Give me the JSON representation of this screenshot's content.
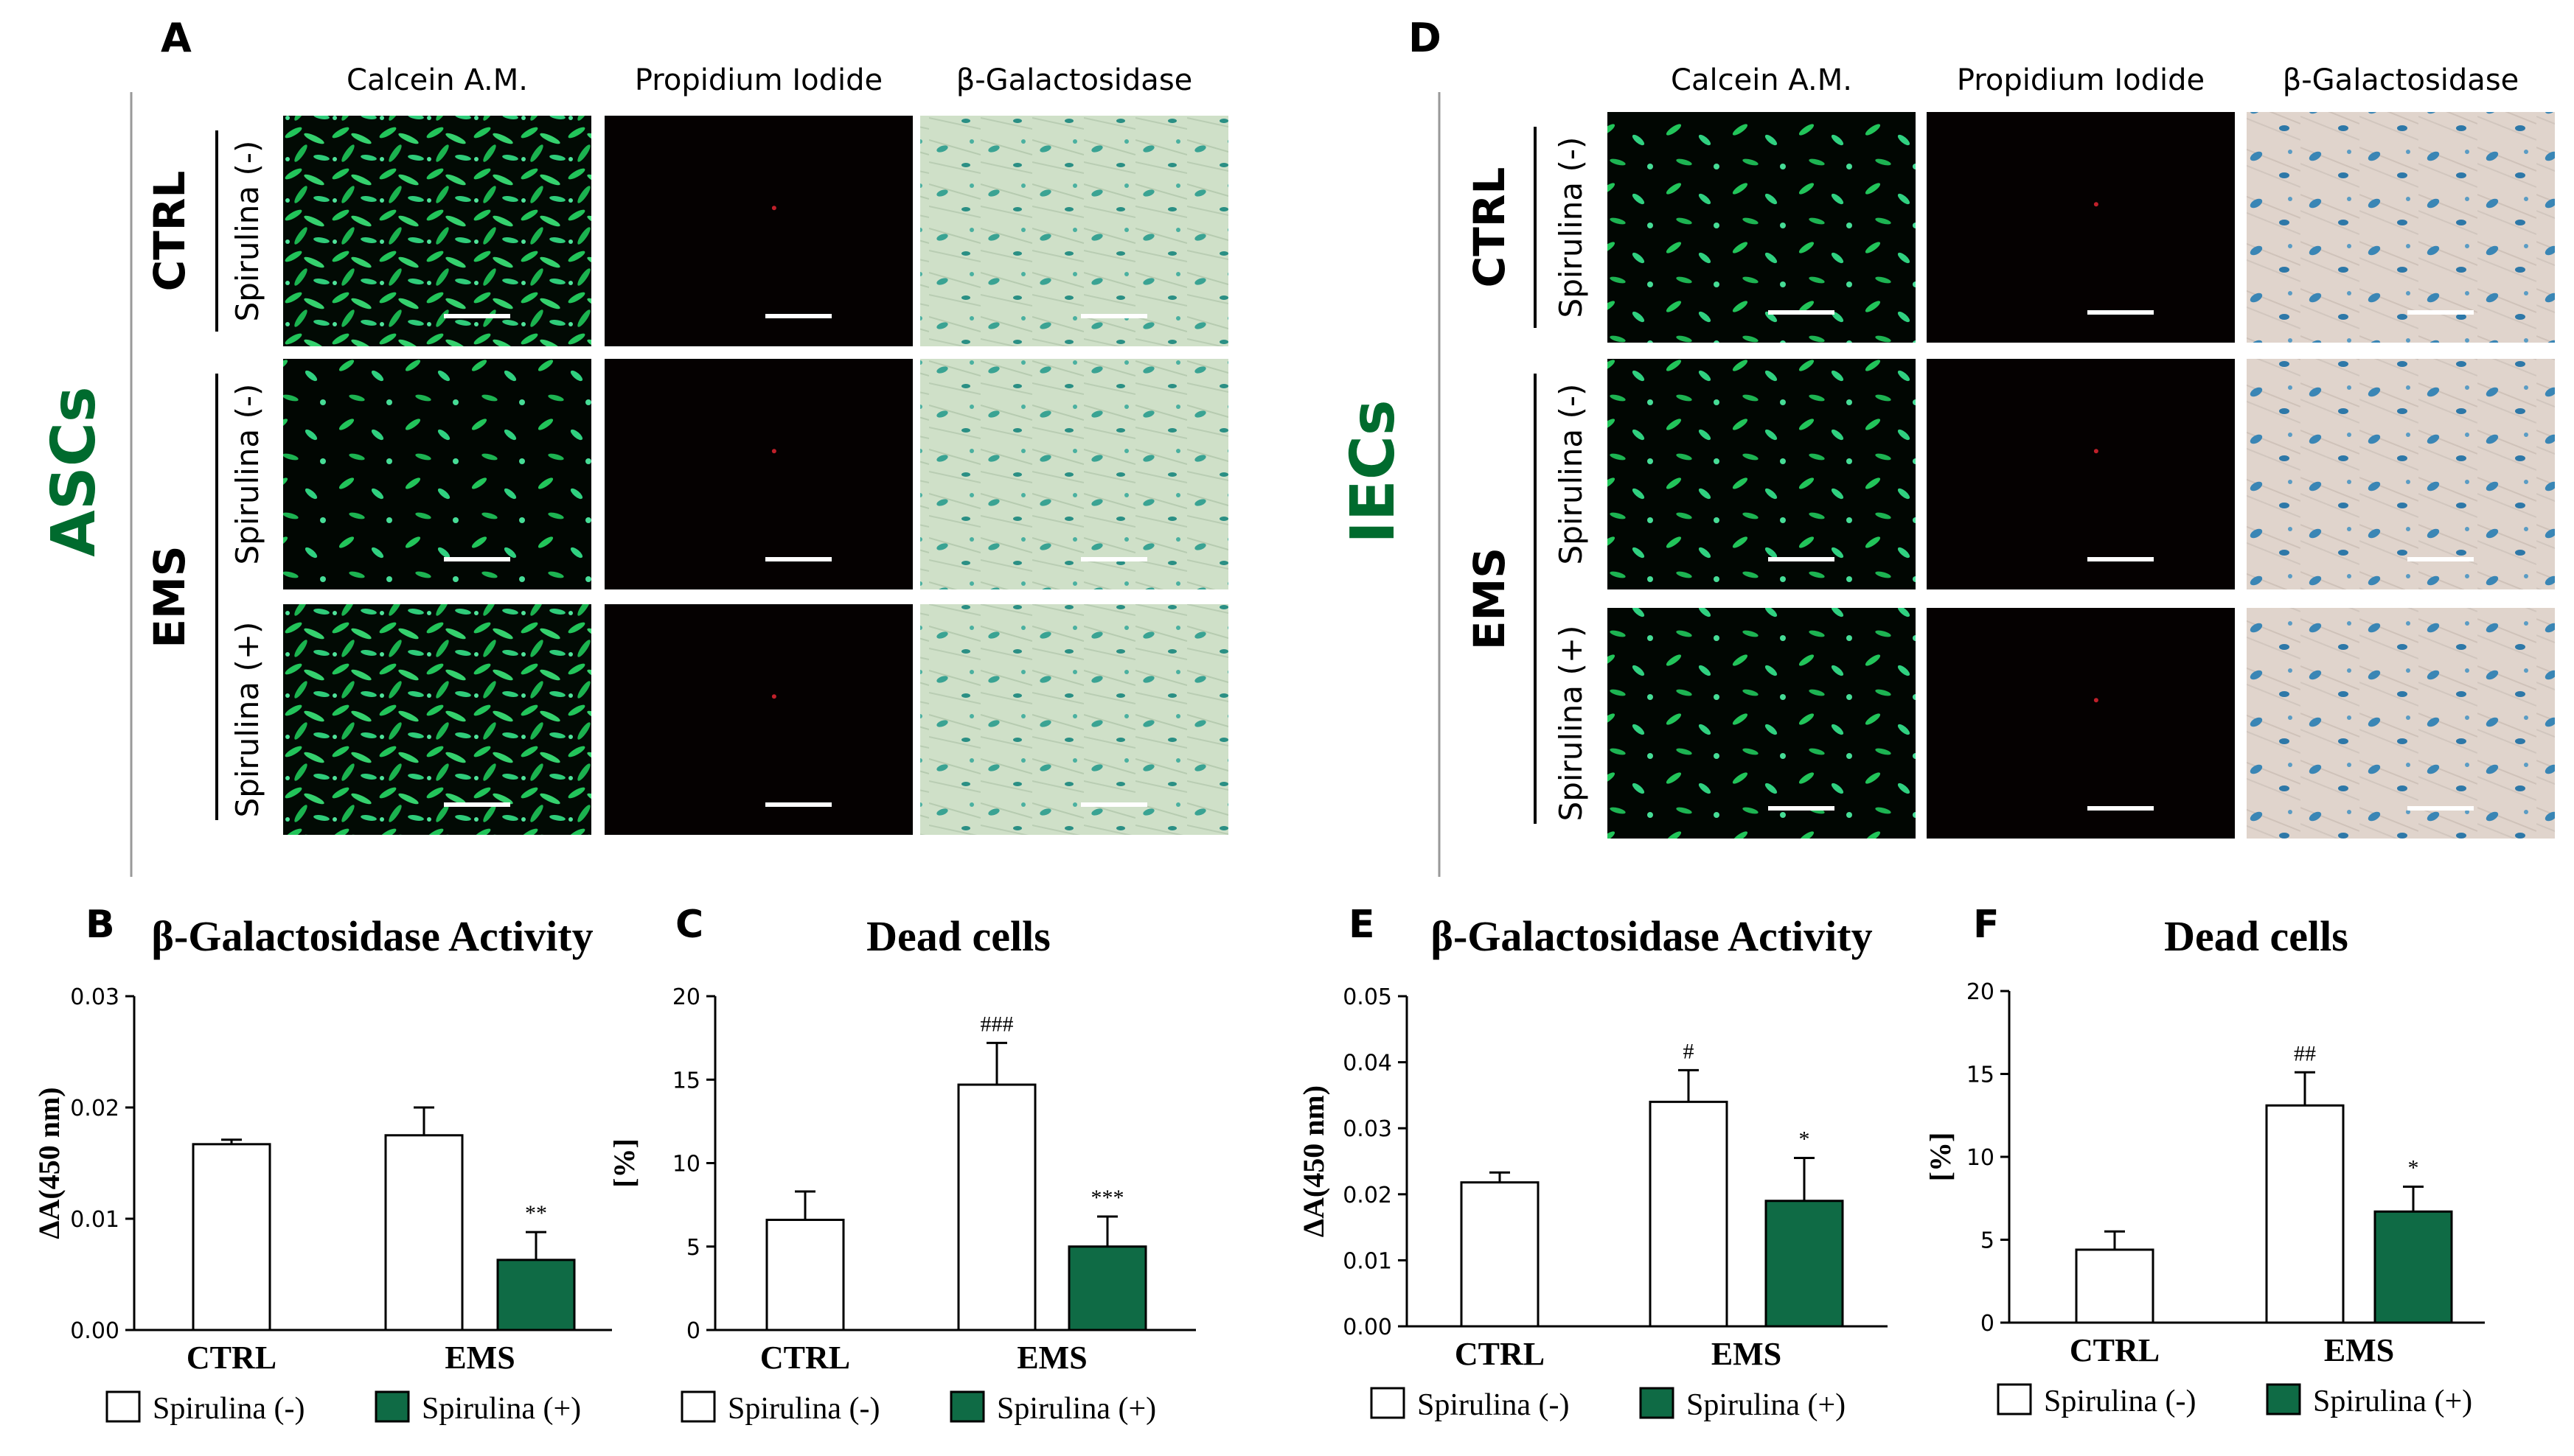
{
  "panels": {
    "A": {
      "letter": "A",
      "group_label": "ASCs",
      "col_headers": [
        "Calcein A.M.",
        "Propidium Iodide",
        "β-Galactosidase"
      ],
      "ctrl_label": "CTRL",
      "ems_label": "EMS",
      "row_labels": [
        "Spirulina (-)",
        "Spirulina (-)",
        "Spirulina (+)"
      ]
    },
    "D": {
      "letter": "D",
      "group_label": "IECs",
      "col_headers": [
        "Calcein A.M.",
        "Propidium Iodide",
        "β-Galactosidase"
      ],
      "ctrl_label": "CTRL",
      "ems_label": "EMS",
      "row_labels": [
        "Spirulina (-)",
        "Spirulina (-)",
        "Spirulina (+)"
      ]
    }
  },
  "legend": {
    "neg": "Spirulina (-)",
    "pos": "Spirulina (+)"
  },
  "colors": {
    "accent_green": "#006b2e",
    "bar_green": "#0f6b45",
    "calcein": "#1fc25a",
    "xgal": "#2f9e93",
    "ies_xgal": "#3a86b5"
  },
  "chart_data": [
    {
      "id": "B",
      "type": "bar",
      "letter": "B",
      "title": "β-Galactosidase Activity",
      "ylabel": "ΔA(450 nm)",
      "categories": [
        "CTRL",
        "EMS"
      ],
      "ylim": [
        0,
        0.03
      ],
      "yticks": [
        "0.00",
        "0.01",
        "0.02",
        "0.03"
      ],
      "series": [
        {
          "name": "Spirulina (-)",
          "values": [
            0.0167,
            0.0175
          ],
          "errors": [
            0.0004,
            0.0025
          ],
          "marks": [
            "",
            ""
          ]
        },
        {
          "name": "Spirulina (+)",
          "values": [
            null,
            0.0063
          ],
          "errors": [
            null,
            0.0025
          ],
          "marks": [
            "",
            "**"
          ]
        }
      ]
    },
    {
      "id": "C",
      "type": "bar",
      "letter": "C",
      "title": "Dead cells",
      "ylabel": "[%]",
      "categories": [
        "CTRL",
        "EMS"
      ],
      "ylim": [
        0,
        20
      ],
      "yticks": [
        "0",
        "5",
        "10",
        "15",
        "20"
      ],
      "series": [
        {
          "name": "Spirulina (-)",
          "values": [
            6.6,
            14.7
          ],
          "errors": [
            1.7,
            2.5
          ],
          "marks": [
            "",
            "###"
          ]
        },
        {
          "name": "Spirulina (+)",
          "values": [
            null,
            5.0
          ],
          "errors": [
            null,
            1.8
          ],
          "marks": [
            "",
            "***"
          ]
        }
      ]
    },
    {
      "id": "E",
      "type": "bar",
      "letter": "E",
      "title": "β-Galactosidase Activity",
      "ylabel": "ΔA(450 nm)",
      "categories": [
        "CTRL",
        "EMS"
      ],
      "ylim": [
        0,
        0.05
      ],
      "yticks": [
        "0.00",
        "0.01",
        "0.02",
        "0.03",
        "0.04",
        "0.05"
      ],
      "series": [
        {
          "name": "Spirulina (-)",
          "values": [
            0.0218,
            0.034
          ],
          "errors": [
            0.0015,
            0.0048
          ],
          "marks": [
            "",
            "#"
          ]
        },
        {
          "name": "Spirulina (+)",
          "values": [
            null,
            0.019
          ],
          "errors": [
            null,
            0.0065
          ],
          "marks": [
            "",
            "*"
          ]
        }
      ]
    },
    {
      "id": "F",
      "type": "bar",
      "letter": "F",
      "title": "Dead cells",
      "ylabel": "[%]",
      "categories": [
        "CTRL",
        "EMS"
      ],
      "ylim": [
        0,
        20
      ],
      "yticks": [
        "0",
        "5",
        "10",
        "15",
        "20"
      ],
      "series": [
        {
          "name": "Spirulina (-)",
          "values": [
            4.4,
            13.1
          ],
          "errors": [
            1.1,
            2.0
          ],
          "marks": [
            "",
            "##"
          ]
        },
        {
          "name": "Spirulina (+)",
          "values": [
            null,
            6.7
          ],
          "errors": [
            null,
            1.5
          ],
          "marks": [
            "",
            "*"
          ]
        }
      ]
    }
  ]
}
